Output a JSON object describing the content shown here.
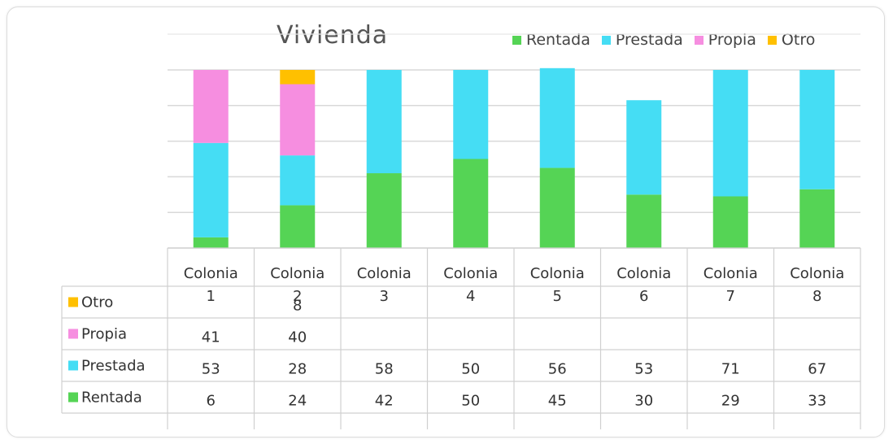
{
  "chart_data": {
    "type": "bar",
    "stacked": true,
    "title": "Vivienda",
    "categories": [
      "Colonia 1",
      "Colonia 2",
      "Colonia 3",
      "Colonia 4",
      "Colonia 5",
      "Colonia 6",
      "Colonia 7",
      "Colonia 8"
    ],
    "category_line1": [
      "Colonia",
      "Colonia",
      "Colonia",
      "Colonia",
      "Colonia",
      "Colonia",
      "Colonia",
      "Colonia"
    ],
    "category_line2": [
      "1",
      "2",
      "3",
      "4",
      "5",
      "6",
      "7",
      "8"
    ],
    "series": [
      {
        "name": "Rentada",
        "color": "#55d455",
        "values": [
          6,
          24,
          42,
          50,
          45,
          30,
          29,
          33
        ]
      },
      {
        "name": "Prestada",
        "color": "#45ddf4",
        "values": [
          53,
          28,
          58,
          50,
          56,
          53,
          71,
          67
        ]
      },
      {
        "name": "Propia",
        "color": "#f68ee0",
        "values": [
          41,
          40,
          null,
          null,
          null,
          null,
          null,
          null
        ]
      },
      {
        "name": "Otro",
        "color": "#ffc000",
        "values": [
          null,
          8,
          null,
          null,
          null,
          null,
          null,
          null
        ]
      }
    ],
    "table_rows_order": [
      "Otro",
      "Propia",
      "Prestada",
      "Rentada"
    ],
    "ylim": [
      0,
      100
    ],
    "grid": true,
    "legend_position": "top-right",
    "data_table": true
  }
}
